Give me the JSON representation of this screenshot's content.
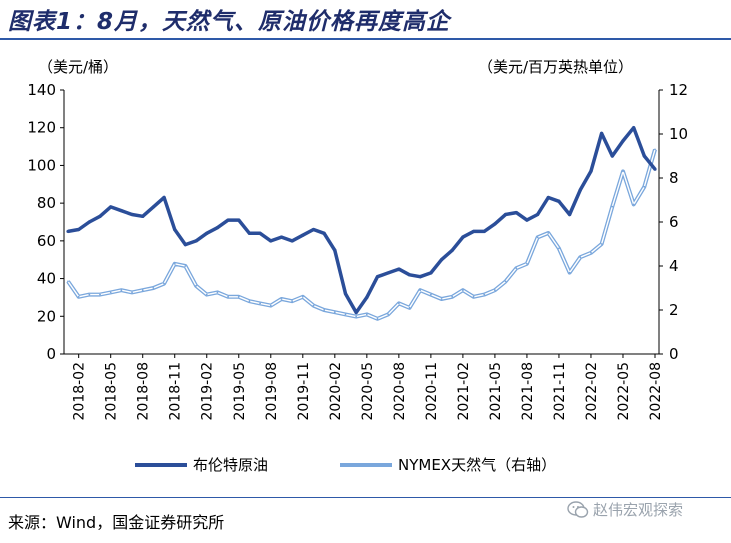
{
  "title": "图表1：8月，天然气、原油价格再度高企",
  "left_unit": "（美元/桶）",
  "right_unit": "（美元/百万英热单位）",
  "source": "来源：Wind，国金证券研究所",
  "brand": "赵伟宏观探索",
  "brand_icon": "wechat-icon",
  "colors": {
    "brent": "#2b4e99",
    "gas": "#7aa7dc",
    "accent": "#2e59a8"
  },
  "chart_data": {
    "type": "line",
    "title": "图表1：8月，天然气、原油价格再度高企",
    "x_tick_labels": [
      "2018-02",
      "2018-05",
      "2018-08",
      "2018-11",
      "2019-02",
      "2019-05",
      "2019-08",
      "2019-11",
      "2020-02",
      "2020-05",
      "2020-08",
      "2020-11",
      "2021-02",
      "2021-05",
      "2021-08",
      "2021-11",
      "2022-02",
      "2022-05",
      "2022-08"
    ],
    "x_months": [
      "2018-01",
      "2018-02",
      "2018-03",
      "2018-04",
      "2018-05",
      "2018-06",
      "2018-07",
      "2018-08",
      "2018-09",
      "2018-10",
      "2018-11",
      "2018-12",
      "2019-01",
      "2019-02",
      "2019-03",
      "2019-04",
      "2019-05",
      "2019-06",
      "2019-07",
      "2019-08",
      "2019-09",
      "2019-10",
      "2019-11",
      "2019-12",
      "2020-01",
      "2020-02",
      "2020-03",
      "2020-04",
      "2020-05",
      "2020-06",
      "2020-07",
      "2020-08",
      "2020-09",
      "2020-10",
      "2020-11",
      "2020-12",
      "2021-01",
      "2021-02",
      "2021-03",
      "2021-04",
      "2021-05",
      "2021-06",
      "2021-07",
      "2021-08",
      "2021-09",
      "2021-10",
      "2021-11",
      "2021-12",
      "2022-01",
      "2022-02",
      "2022-03",
      "2022-04",
      "2022-05",
      "2022-06",
      "2022-07",
      "2022-08"
    ],
    "y_left": {
      "label": "（美元/桶）",
      "range": [
        0,
        140
      ],
      "ticks": [
        0,
        20,
        40,
        60,
        80,
        100,
        120,
        140
      ]
    },
    "y_right": {
      "label": "（美元/百万英热单位）",
      "range": [
        0,
        12
      ],
      "ticks": [
        0,
        2,
        4,
        6,
        8,
        10,
        12
      ]
    },
    "legend_position": "bottom",
    "series": [
      {
        "name": "布伦特原油",
        "axis": "left",
        "values": [
          65,
          66,
          70,
          73,
          78,
          76,
          74,
          73,
          78,
          83,
          66,
          58,
          60,
          64,
          67,
          71,
          71,
          64,
          64,
          60,
          62,
          60,
          63,
          66,
          64,
          55,
          32,
          22,
          30,
          41,
          43,
          45,
          42,
          41,
          43,
          50,
          55,
          62,
          65,
          65,
          69,
          74,
          75,
          71,
          74,
          83,
          81,
          74,
          87,
          97,
          117,
          105,
          113,
          120,
          105,
          98
        ]
      },
      {
        "name": "NYMEX天然气（右轴）",
        "axis": "right",
        "values": [
          3.3,
          2.6,
          2.7,
          2.7,
          2.8,
          2.9,
          2.8,
          2.9,
          3.0,
          3.2,
          4.1,
          4.0,
          3.1,
          2.7,
          2.8,
          2.6,
          2.6,
          2.4,
          2.3,
          2.2,
          2.5,
          2.4,
          2.6,
          2.2,
          2.0,
          1.9,
          1.8,
          1.7,
          1.8,
          1.6,
          1.8,
          2.3,
          2.1,
          2.9,
          2.7,
          2.5,
          2.6,
          2.9,
          2.6,
          2.7,
          2.9,
          3.3,
          3.9,
          4.1,
          5.3,
          5.5,
          4.8,
          3.7,
          4.4,
          4.6,
          5.0,
          6.7,
          8.3,
          6.8,
          7.6,
          9.3
        ]
      }
    ]
  }
}
